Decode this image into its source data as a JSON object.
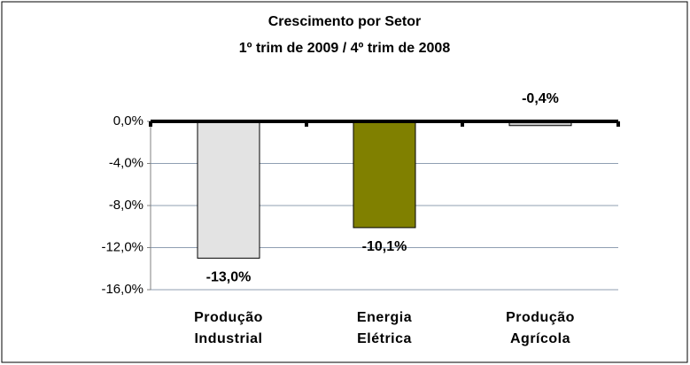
{
  "chart_data": {
    "type": "bar",
    "title": "Crescimento por Setor",
    "subtitle": "1º trim de 2009 / 4º trim de 2008",
    "categories": [
      "Produção Industrial",
      "Energia Elétrica",
      "Produção Agrícola"
    ],
    "values": [
      -13.0,
      -10.1,
      -0.4
    ],
    "value_labels": [
      "-13,0%",
      "-10,1%",
      "-0,4%"
    ],
    "colors": [
      "#e3e3e3",
      "#808000",
      "#c8c8c8"
    ],
    "ylim": [
      -16,
      0
    ],
    "yticks": [
      {
        "value": 0,
        "label": "0,0%"
      },
      {
        "value": -4,
        "label": "-4,0%"
      },
      {
        "value": -8,
        "label": "-8,0%"
      },
      {
        "value": -12,
        "label": "-12,0%"
      },
      {
        "value": -16,
        "label": "-16,0%"
      }
    ],
    "grid": true
  }
}
